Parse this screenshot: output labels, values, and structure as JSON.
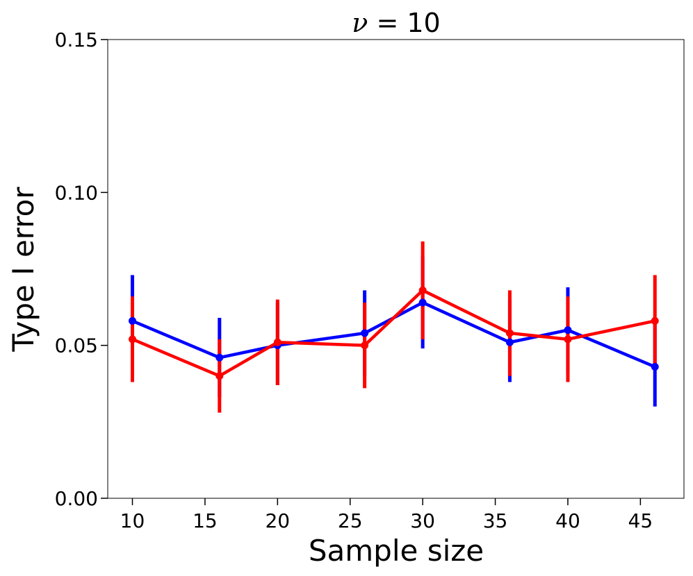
{
  "chart_data": {
    "type": "line",
    "title_var": "ν",
    "title_rest": " = 10",
    "xlabel": "Sample size",
    "ylabel": "Type I error",
    "xlim": [
      8.3,
      48
    ],
    "ylim": [
      0.0,
      0.15
    ],
    "x_ticks": [
      10,
      15,
      20,
      25,
      30,
      35,
      40,
      45
    ],
    "x_tick_labels": [
      "10",
      "15",
      "20",
      "25",
      "30",
      "35",
      "40",
      "45"
    ],
    "y_ticks": [
      0.0,
      0.05,
      0.1,
      0.15
    ],
    "y_tick_labels": [
      "0.00",
      "0.05",
      "0.10",
      "0.15"
    ],
    "grid": false,
    "series": [
      {
        "color": "#0000ff",
        "x": [
          10,
          16,
          20,
          26,
          30,
          36,
          40,
          46
        ],
        "y": [
          0.058,
          0.046,
          0.05,
          0.054,
          0.064,
          0.051,
          0.055,
          0.043
        ],
        "err_low": [
          0.044,
          0.033,
          0.037,
          0.04,
          0.049,
          0.038,
          0.041,
          0.03
        ],
        "err_high": [
          0.073,
          0.059,
          0.064,
          0.068,
          0.079,
          0.065,
          0.069,
          0.057
        ]
      },
      {
        "color": "#ff0000",
        "x": [
          10,
          16,
          20,
          26,
          30,
          36,
          40,
          46
        ],
        "y": [
          0.052,
          0.04,
          0.051,
          0.05,
          0.068,
          0.054,
          0.052,
          0.058
        ],
        "err_low": [
          0.038,
          0.028,
          0.037,
          0.036,
          0.052,
          0.04,
          0.038,
          0.044
        ],
        "err_high": [
          0.066,
          0.052,
          0.065,
          0.064,
          0.084,
          0.068,
          0.066,
          0.073
        ]
      }
    ]
  }
}
